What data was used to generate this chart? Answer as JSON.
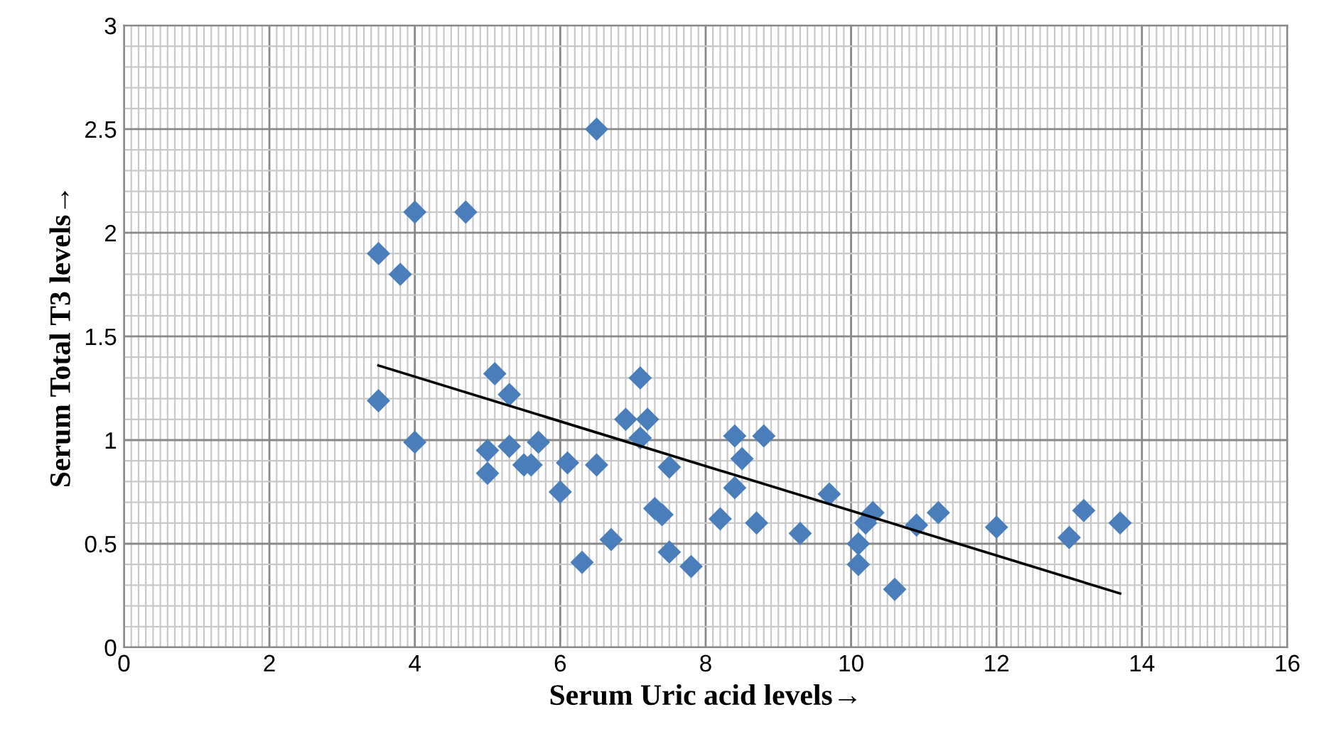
{
  "chart_data": {
    "type": "scatter",
    "xlabel": "Serum Uric acid levels→",
    "ylabel": "Serum Total T3 levels→",
    "xlim": [
      0,
      16
    ],
    "xticks": [
      0,
      2,
      4,
      6,
      8,
      10,
      12,
      14,
      16
    ],
    "ylim": [
      0,
      3
    ],
    "yticks": [
      0,
      0.5,
      1,
      1.5,
      2,
      2.5,
      3
    ],
    "grid": true,
    "legend": false,
    "series": [
      {
        "color": "#4a7ebb",
        "marker": "diamond",
        "x": [
          3.5,
          3.8,
          4.0,
          4.7,
          6.5,
          3.5,
          4.0,
          5.1,
          5.3,
          5.0,
          5.0,
          5.3,
          5.5,
          5.6,
          5.7,
          6.1,
          6.0,
          6.5,
          6.3,
          6.7,
          7.1,
          6.9,
          7.2,
          7.1,
          7.5,
          7.3,
          7.4,
          7.5,
          7.8,
          8.4,
          8.8,
          8.5,
          8.4,
          8.2,
          8.7,
          9.3,
          9.7,
          10.1,
          10.1,
          10.2,
          10.3,
          10.6,
          10.9,
          11.2,
          12.0,
          13.0,
          13.2,
          13.7
        ],
        "values": [
          1.9,
          1.8,
          2.1,
          2.1,
          2.5,
          1.19,
          0.99,
          1.32,
          1.22,
          0.95,
          0.84,
          0.97,
          0.88,
          0.88,
          0.99,
          0.89,
          0.75,
          0.88,
          0.41,
          0.52,
          1.3,
          1.1,
          1.1,
          1.01,
          0.87,
          0.67,
          0.64,
          0.46,
          0.39,
          1.02,
          1.02,
          0.91,
          0.77,
          0.62,
          0.6,
          0.55,
          0.74,
          0.4,
          0.5,
          0.6,
          0.65,
          0.28,
          0.59,
          0.65,
          0.58,
          0.53,
          0.66,
          0.6
        ]
      },
      {
        "type": "line",
        "color": "#000000",
        "marker": "none",
        "line_style": "solid",
        "x": [
          3.5,
          13.7
        ],
        "values": [
          1.36,
          0.26
        ]
      }
    ]
  }
}
